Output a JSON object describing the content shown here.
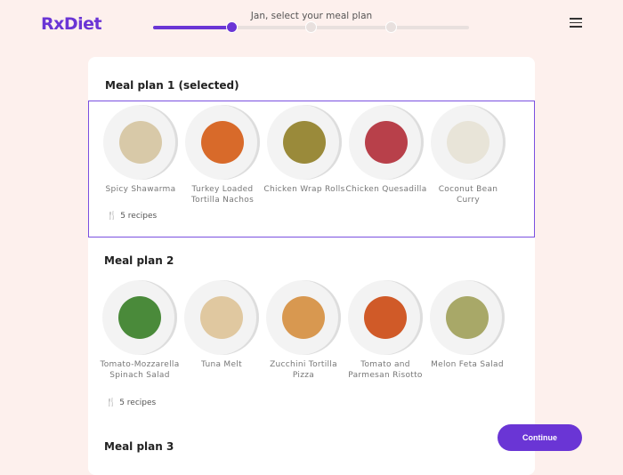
{
  "header": {
    "logo": "RxDiet",
    "title": "Jan, select your meal plan",
    "progress_step": 1,
    "progress_total": 3
  },
  "plans": [
    {
      "title": "Meal plan 1 (selected)",
      "selected": true,
      "recipes": "5 recipes",
      "items": [
        "Spicy Shawarma",
        "Turkey Loaded Tortilla Nachos",
        "Chicken Wrap Rolls",
        "Chicken Quesadilla",
        "Coconut Bean Curry"
      ]
    },
    {
      "title": "Meal plan 2",
      "selected": false,
      "recipes": "5 recipes",
      "items": [
        "Tomato-Mozzarella Spinach Salad",
        "Tuna Melt",
        "Zucchini Tortilla Pizza",
        "Tomato and Parmesan Risotto",
        "Melon Feta Salad"
      ]
    },
    {
      "title": "Meal plan 3"
    }
  ],
  "continue_label": "Continue",
  "colors": {
    "accent": "#6a35d5",
    "background": "#fdf0ed"
  }
}
